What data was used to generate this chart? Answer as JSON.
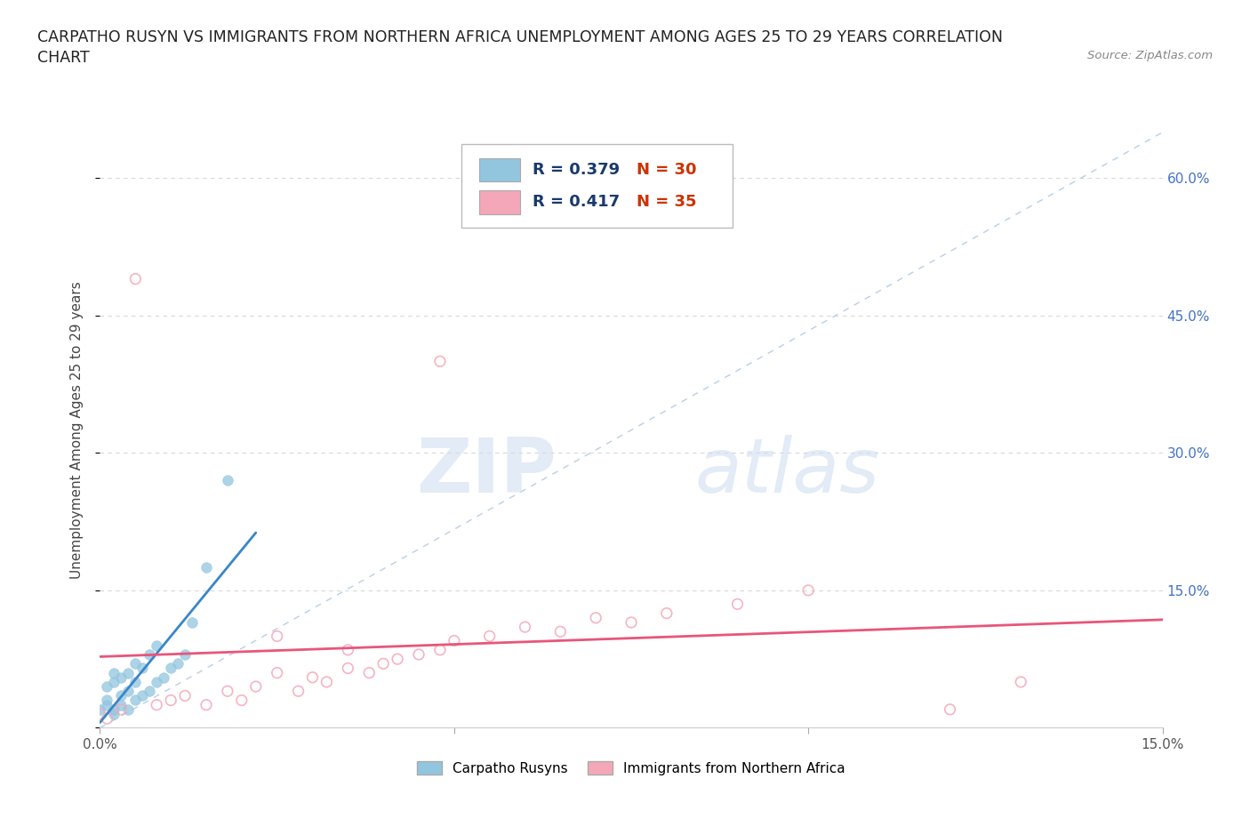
{
  "title_line1": "CARPATHO RUSYN VS IMMIGRANTS FROM NORTHERN AFRICA UNEMPLOYMENT AMONG AGES 25 TO 29 YEARS CORRELATION",
  "title_line2": "CHART",
  "source": "Source: ZipAtlas.com",
  "ylabel": "Unemployment Among Ages 25 to 29 years",
  "xmin": 0.0,
  "xmax": 0.15,
  "ymin": 0.0,
  "ymax": 0.65,
  "yticks": [
    0.0,
    0.15,
    0.3,
    0.45,
    0.6
  ],
  "ytick_labels": [
    "",
    "15.0%",
    "30.0%",
    "45.0%",
    "60.0%"
  ],
  "xticks": [
    0.0,
    0.05,
    0.1,
    0.15
  ],
  "xtick_labels": [
    "0.0%",
    "",
    "",
    "15.0%"
  ],
  "legend_label1": "Carpatho Rusyns",
  "legend_label2": "Immigrants from Northern Africa",
  "color_blue": "#92c5de",
  "color_pink": "#f4a7b9",
  "color_blue_line": "#3a86c8",
  "color_pink_line": "#e8567a",
  "color_diag_line": "#b8cfe8",
  "watermark_zip": "ZIP",
  "watermark_atlas": "atlas",
  "background_color": "#ffffff",
  "grid_color": "#d8d8d8",
  "blue_x": [
    0.0,
    0.001,
    0.001,
    0.001,
    0.002,
    0.002,
    0.002,
    0.002,
    0.003,
    0.003,
    0.003,
    0.004,
    0.004,
    0.004,
    0.005,
    0.005,
    0.005,
    0.006,
    0.006,
    0.007,
    0.007,
    0.008,
    0.008,
    0.009,
    0.01,
    0.011,
    0.012,
    0.013,
    0.015,
    0.018
  ],
  "blue_y": [
    0.02,
    0.025,
    0.03,
    0.045,
    0.015,
    0.02,
    0.05,
    0.06,
    0.025,
    0.035,
    0.055,
    0.02,
    0.04,
    0.06,
    0.03,
    0.05,
    0.07,
    0.035,
    0.065,
    0.04,
    0.08,
    0.05,
    0.09,
    0.055,
    0.065,
    0.07,
    0.08,
    0.115,
    0.175,
    0.27
  ],
  "pink_x": [
    0.0,
    0.001,
    0.003,
    0.005,
    0.008,
    0.01,
    0.012,
    0.015,
    0.018,
    0.02,
    0.022,
    0.025,
    0.028,
    0.03,
    0.032,
    0.035,
    0.038,
    0.04,
    0.042,
    0.045,
    0.048,
    0.05,
    0.055,
    0.06,
    0.065,
    0.07,
    0.075,
    0.08,
    0.09,
    0.1,
    0.048,
    0.025,
    0.035,
    0.12,
    0.13
  ],
  "pink_y": [
    0.015,
    0.01,
    0.02,
    0.49,
    0.025,
    0.03,
    0.035,
    0.025,
    0.04,
    0.03,
    0.045,
    0.06,
    0.04,
    0.055,
    0.05,
    0.065,
    0.06,
    0.07,
    0.075,
    0.08,
    0.085,
    0.095,
    0.1,
    0.11,
    0.105,
    0.12,
    0.115,
    0.125,
    0.135,
    0.15,
    0.4,
    0.1,
    0.085,
    0.02,
    0.05
  ]
}
